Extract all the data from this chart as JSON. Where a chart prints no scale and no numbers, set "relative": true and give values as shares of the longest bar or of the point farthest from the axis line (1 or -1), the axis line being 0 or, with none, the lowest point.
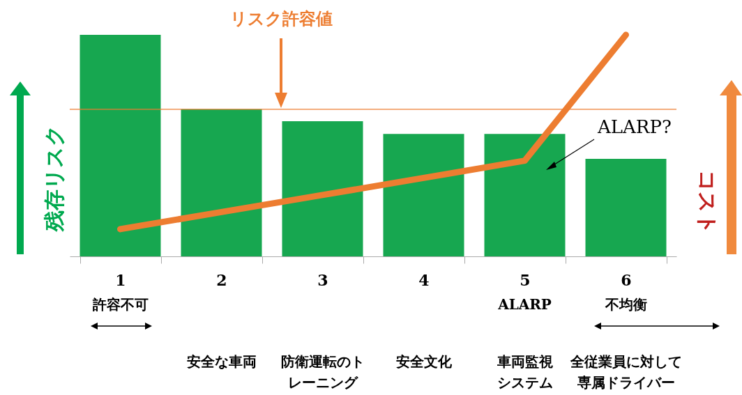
{
  "chart_data": {
    "type": "bar",
    "relative": true,
    "ylabel": "残存リスク",
    "y2label": "コスト",
    "categories": [
      "1",
      "2",
      "3",
      "4",
      "5",
      "6"
    ],
    "series": [
      {
        "color": "#17a750",
        "values": [
          1,
          0.664,
          0.61,
          0.553,
          0.553,
          0.44
        ]
      },
      {
        "type": "line",
        "axis": "y2",
        "color": "#ed7d31",
        "values": [
          0.123,
          0.2,
          0.277,
          0.354,
          0.432,
          1
        ]
      }
    ],
    "ref_lines": [
      {
        "axis": "y",
        "value": 0.664,
        "label": "リスク許容値",
        "color": "#ed7d31"
      }
    ],
    "annotations": [
      "ALARP?",
      "許容不可",
      "安全な車両",
      "防衛運転のトレーニング",
      "安全文化",
      "ALARP",
      "車両監視システム",
      "不均衡",
      "全従業員に対して専属ドライバー"
    ]
  }
}
